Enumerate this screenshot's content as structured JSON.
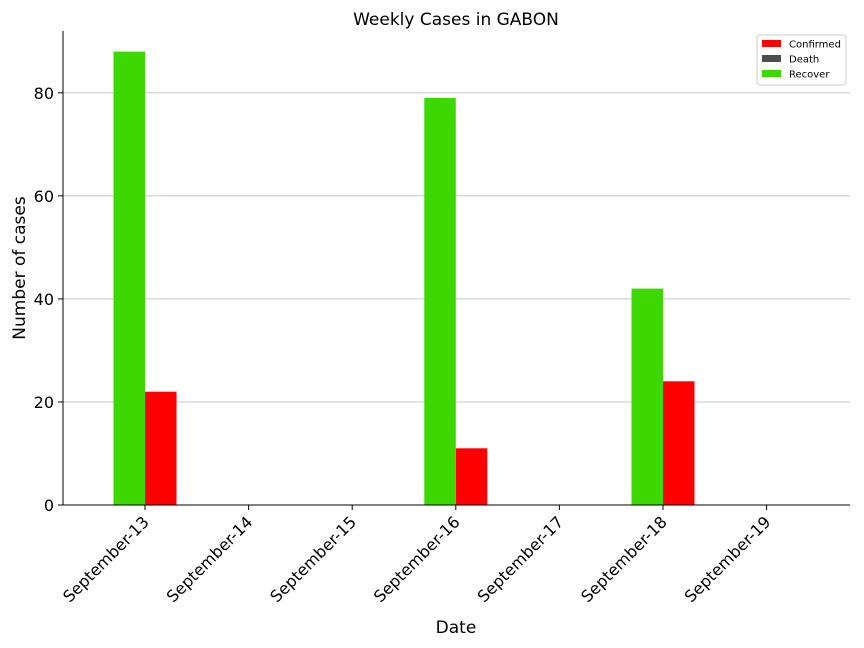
{
  "chart_data": {
    "type": "bar",
    "title": "Weekly Cases in GABON",
    "xlabel": "Date",
    "ylabel": "Number of cases",
    "categories": [
      "September-13",
      "September-14",
      "September-15",
      "September-16",
      "September-17",
      "September-18",
      "September-19"
    ],
    "series": [
      {
        "name": "Confirmed",
        "color": "#ff0000",
        "values": [
          22,
          0,
          0,
          11,
          0,
          24,
          0
        ]
      },
      {
        "name": "Death",
        "color": "#4d4d4d",
        "values": [
          0,
          0,
          0,
          0,
          0,
          0,
          0
        ]
      },
      {
        "name": "Recover",
        "color": "#3dd800",
        "values": [
          88,
          0,
          0,
          79,
          0,
          42,
          0
        ]
      }
    ],
    "ylim": [
      0,
      92
    ],
    "yticks": [
      0,
      20,
      40,
      60,
      80
    ],
    "grid": "horizontal",
    "legend_position": "top-right"
  }
}
